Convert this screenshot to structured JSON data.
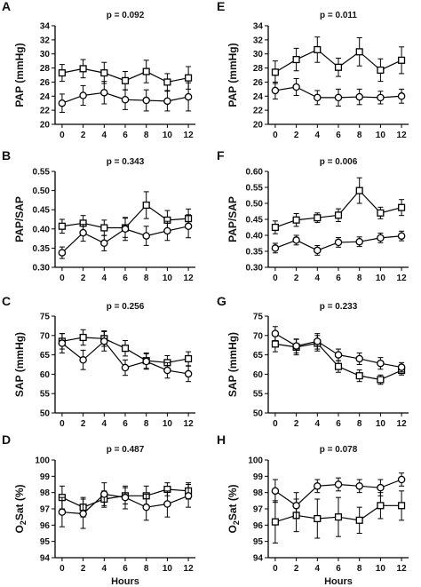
{
  "chart_data": [
    {
      "type": "line",
      "letter": "A",
      "pvalue": "p = 0.092",
      "ylabel": "PAP (mmHg)",
      "ylabel_sub": "",
      "ylabel_rest": "",
      "xlabel": "",
      "ylim": [
        20,
        34
      ],
      "yticks": [
        20,
        22,
        24,
        26,
        28,
        30,
        32,
        34
      ],
      "yticklabels": [
        "20",
        "22",
        "24",
        "26",
        "28",
        "30",
        "32",
        "34"
      ],
      "x": [
        0,
        2,
        4,
        6,
        8,
        10,
        12
      ],
      "xticklabels": [
        "0",
        "2",
        "4",
        "6",
        "8",
        "10",
        "12"
      ],
      "series": [
        {
          "marker": "square",
          "values": [
            27.3,
            27.9,
            27.3,
            26.2,
            27.5,
            26.0,
            26.6
          ],
          "err": [
            1.2,
            1.3,
            1.5,
            1.3,
            1.6,
            1.2,
            1.6
          ]
        },
        {
          "marker": "circle",
          "values": [
            23.0,
            24.1,
            24.5,
            23.5,
            23.4,
            23.3,
            23.9
          ],
          "err": [
            1.3,
            1.4,
            1.6,
            1.4,
            1.5,
            1.4,
            2.0
          ]
        }
      ]
    },
    {
      "type": "line",
      "letter": "B",
      "pvalue": "p = 0.343",
      "ylabel": "PAP/SAP",
      "ylabel_sub": "",
      "ylabel_rest": "",
      "xlabel": "",
      "ylim": [
        0.3,
        0.55
      ],
      "yticks": [
        0.3,
        0.35,
        0.4,
        0.45,
        0.5,
        0.55
      ],
      "yticklabels": [
        "0.30",
        "0.35",
        "0.40",
        "0.45",
        "0.50",
        "0.55"
      ],
      "x": [
        0,
        2,
        4,
        6,
        8,
        10,
        12
      ],
      "xticklabels": [
        "0",
        "2",
        "4",
        "6",
        "8",
        "10",
        "12"
      ],
      "series": [
        {
          "marker": "square",
          "values": [
            0.407,
            0.415,
            0.403,
            0.403,
            0.462,
            0.423,
            0.427
          ],
          "err": [
            0.018,
            0.02,
            0.02,
            0.025,
            0.035,
            0.025,
            0.025
          ]
        },
        {
          "marker": "circle",
          "values": [
            0.338,
            0.39,
            0.363,
            0.4,
            0.382,
            0.395,
            0.407
          ],
          "err": [
            0.015,
            0.022,
            0.02,
            0.03,
            0.025,
            0.025,
            0.03
          ]
        }
      ]
    },
    {
      "type": "line",
      "letter": "C",
      "pvalue": "p = 0.256",
      "ylabel": "SAP (mmHg)",
      "ylabel_sub": "",
      "ylabel_rest": "",
      "xlabel": "",
      "ylim": [
        50,
        75
      ],
      "yticks": [
        50,
        55,
        60,
        65,
        70,
        75
      ],
      "yticklabels": [
        "50",
        "55",
        "60",
        "65",
        "70",
        "75"
      ],
      "x": [
        0,
        2,
        4,
        6,
        8,
        10,
        12
      ],
      "xticklabels": [
        "0",
        "2",
        "4",
        "6",
        "8",
        "10",
        "12"
      ],
      "series": [
        {
          "marker": "square",
          "values": [
            68.5,
            69.5,
            69.2,
            66.7,
            63.5,
            63.0,
            64.0
          ],
          "err": [
            2.0,
            2.0,
            2.0,
            2.0,
            2.0,
            1.8,
            1.8
          ]
        },
        {
          "marker": "circle",
          "values": [
            68.0,
            63.7,
            68.5,
            61.7,
            63.3,
            61.0,
            60.1
          ],
          "err": [
            2.5,
            2.5,
            2.5,
            2.0,
            2.0,
            2.0,
            2.0
          ]
        }
      ]
    },
    {
      "type": "line",
      "letter": "D",
      "pvalue": "p = 0.487",
      "ylabel": "O",
      "ylabel_sub": "2",
      "ylabel_rest": "Sat (%)",
      "xlabel": "Hours",
      "ylim": [
        94,
        100
      ],
      "yticks": [
        94,
        95,
        96,
        97,
        98,
        99,
        100
      ],
      "yticklabels": [
        "94",
        "95",
        "96",
        "97",
        "98",
        "99",
        "100"
      ],
      "x": [
        0,
        2,
        4,
        6,
        8,
        10,
        12
      ],
      "xticklabels": [
        "0",
        "2",
        "4",
        "6",
        "8",
        "10",
        "12"
      ],
      "series": [
        {
          "marker": "square",
          "values": [
            97.7,
            97.1,
            97.6,
            97.8,
            97.8,
            98.2,
            98.1
          ],
          "err": [
            0.7,
            0.6,
            0.5,
            0.5,
            0.6,
            0.4,
            0.5
          ]
        },
        {
          "marker": "circle",
          "values": [
            96.8,
            96.7,
            97.9,
            97.7,
            97.1,
            97.3,
            97.8
          ],
          "err": [
            0.9,
            0.9,
            0.7,
            0.7,
            0.8,
            0.8,
            0.7
          ]
        }
      ]
    },
    {
      "type": "line",
      "letter": "E",
      "pvalue": "p = 0.011",
      "ylabel": "PAP (mmHg)",
      "ylabel_sub": "",
      "ylabel_rest": "",
      "xlabel": "",
      "ylim": [
        20,
        34
      ],
      "yticks": [
        20,
        22,
        24,
        26,
        28,
        30,
        32,
        34
      ],
      "yticklabels": [
        "20",
        "22",
        "24",
        "26",
        "28",
        "30",
        "32",
        "34"
      ],
      "x": [
        0,
        2,
        4,
        6,
        8,
        10,
        12
      ],
      "xticklabels": [
        "0",
        "2",
        "4",
        "6",
        "8",
        "10",
        "12"
      ],
      "series": [
        {
          "marker": "square",
          "values": [
            27.4,
            29.2,
            30.6,
            28.1,
            30.3,
            27.7,
            29.1
          ],
          "err": [
            1.6,
            1.6,
            1.8,
            1.3,
            2.0,
            1.6,
            1.9
          ]
        },
        {
          "marker": "circle",
          "values": [
            24.8,
            25.3,
            23.8,
            23.8,
            23.9,
            23.8,
            24.0
          ],
          "err": [
            1.2,
            1.2,
            1.0,
            1.2,
            1.1,
            0.9,
            1.0
          ]
        }
      ]
    },
    {
      "type": "line",
      "letter": "F",
      "pvalue": "p = 0.006",
      "ylabel": "PAP/SAP",
      "ylabel_sub": "",
      "ylabel_rest": "",
      "xlabel": "",
      "ylim": [
        0.3,
        0.6
      ],
      "yticks": [
        0.3,
        0.35,
        0.4,
        0.45,
        0.5,
        0.55,
        0.6
      ],
      "yticklabels": [
        "0.30",
        "0.35",
        "0.40",
        "0.45",
        "0.50",
        "0.55",
        "0.60"
      ],
      "x": [
        0,
        2,
        4,
        6,
        8,
        10,
        12
      ],
      "xticklabels": [
        "0",
        "2",
        "4",
        "6",
        "8",
        "10",
        "12"
      ],
      "series": [
        {
          "marker": "square",
          "values": [
            0.425,
            0.448,
            0.455,
            0.463,
            0.54,
            0.47,
            0.487
          ],
          "err": [
            0.02,
            0.02,
            0.015,
            0.02,
            0.04,
            0.018,
            0.025
          ]
        },
        {
          "marker": "circle",
          "values": [
            0.36,
            0.385,
            0.353,
            0.378,
            0.38,
            0.392,
            0.398
          ],
          "err": [
            0.015,
            0.015,
            0.015,
            0.015,
            0.015,
            0.015,
            0.015
          ]
        }
      ]
    },
    {
      "type": "line",
      "letter": "G",
      "pvalue": "p = 0.233",
      "ylabel": "SAP (mmHg)",
      "ylabel_sub": "",
      "ylabel_rest": "",
      "xlabel": "",
      "ylim": [
        50,
        75
      ],
      "yticks": [
        50,
        55,
        60,
        65,
        70,
        75
      ],
      "yticklabels": [
        "50",
        "55",
        "60",
        "65",
        "70",
        "75"
      ],
      "x": [
        0,
        2,
        4,
        6,
        8,
        10,
        12
      ],
      "xticklabels": [
        "0",
        "2",
        "4",
        "6",
        "8",
        "10",
        "12"
      ],
      "series": [
        {
          "marker": "square",
          "values": [
            67.8,
            67.0,
            68.0,
            62.0,
            59.6,
            58.6,
            61.0
          ],
          "err": [
            2.0,
            2.0,
            2.0,
            1.5,
            1.5,
            1.2,
            1.2
          ]
        },
        {
          "marker": "circle",
          "values": [
            70.5,
            67.3,
            68.5,
            65.0,
            64.0,
            62.8,
            61.8
          ],
          "err": [
            1.8,
            1.8,
            2.0,
            1.5,
            1.5,
            1.5,
            1.2
          ]
        }
      ]
    },
    {
      "type": "line",
      "letter": "H",
      "pvalue": "p = 0.078",
      "ylabel": "O",
      "ylabel_sub": "2",
      "ylabel_rest": "Sat (%)",
      "xlabel": "Hours",
      "ylim": [
        94,
        100
      ],
      "yticks": [
        94,
        95,
        96,
        97,
        98,
        99,
        100
      ],
      "yticklabels": [
        "94",
        "95",
        "96",
        "97",
        "98",
        "99",
        "100"
      ],
      "x": [
        0,
        2,
        4,
        6,
        8,
        10,
        12
      ],
      "xticklabels": [
        "0",
        "2",
        "4",
        "6",
        "8",
        "10",
        "12"
      ],
      "series": [
        {
          "marker": "square",
          "values": [
            96.2,
            96.6,
            96.4,
            96.5,
            96.3,
            97.2,
            97.2
          ],
          "err": [
            1.3,
            1.0,
            1.2,
            1.2,
            0.8,
            0.8,
            0.9
          ]
        },
        {
          "marker": "circle",
          "values": [
            98.1,
            97.2,
            98.4,
            98.5,
            98.4,
            98.3,
            98.8
          ],
          "err": [
            0.7,
            0.8,
            0.4,
            0.4,
            0.4,
            0.5,
            0.4
          ]
        }
      ]
    }
  ]
}
